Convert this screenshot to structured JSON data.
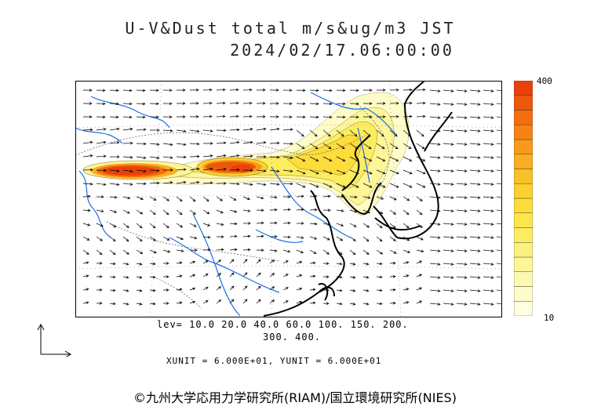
{
  "header": {
    "title_line1": "U-V&Dust total m/s&ug/m3 JST",
    "title_line2": "2024/02/17.06:00:00"
  },
  "legend": {
    "max_label": "400",
    "min_label": "10",
    "colors": [
      "#fffee0",
      "#fefcc8",
      "#fdf9b0",
      "#fdf598",
      "#fcf17e",
      "#fcec60",
      "#fde64a",
      "#fddc3c",
      "#fcd030",
      "#fbc028",
      "#faae20",
      "#f99a1a",
      "#f68414",
      "#f26e10",
      "#ee580c",
      "#e8420a"
    ]
  },
  "contour_levels": {
    "line1": "lev= 10.0 20.0 40.0 60.0 100. 150. 200.",
    "line2": "300. 400."
  },
  "units": {
    "text": "XUNIT = 6.000E+01, YUNIT = 6.000E+01"
  },
  "footer": {
    "copyright": "©九州大学応用力学研究所(RIAM)/国立環境研究所(NIES)"
  },
  "style": {
    "coast_color": "#000000",
    "river_color": "#1e6fe6",
    "border_color": "#555555",
    "arrow_color": "#000000"
  }
}
